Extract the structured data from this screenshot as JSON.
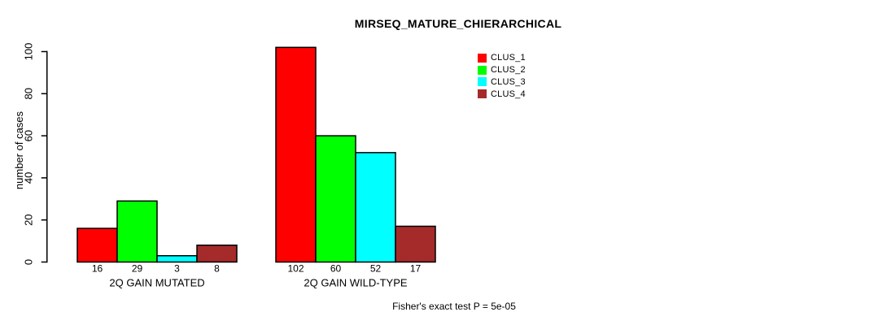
{
  "chart_data": {
    "type": "bar",
    "title": "MIRSEQ_MATURE_CHIERARCHICAL",
    "ylabel": "number of cases",
    "xlabel": "",
    "categories": [
      "2Q GAIN MUTATED",
      "2Q GAIN WILD-TYPE"
    ],
    "series": [
      {
        "name": "CLUS_1",
        "color": "#ff0000",
        "values": [
          16,
          102
        ]
      },
      {
        "name": "CLUS_2",
        "color": "#00ff00",
        "values": [
          29,
          60
        ]
      },
      {
        "name": "CLUS_3",
        "color": "#00ffff",
        "values": [
          3,
          52
        ]
      },
      {
        "name": "CLUS_4",
        "color": "#a52a2a",
        "values": [
          8,
          17
        ]
      }
    ],
    "yticks": [
      0,
      20,
      40,
      60,
      80,
      100
    ],
    "ylim": [
      0,
      102
    ],
    "grid": false,
    "bar_value_labels_shown": true,
    "legend_position": "top-right",
    "legend_entries": [
      "CLUS_1",
      "CLUS_2",
      "CLUS_3",
      "CLUS_4"
    ],
    "annotation": "Fisher's exact test P = 5e-05",
    "axis_color": "#000000",
    "bar_border_color": "#000000",
    "background": "#ffffff"
  }
}
